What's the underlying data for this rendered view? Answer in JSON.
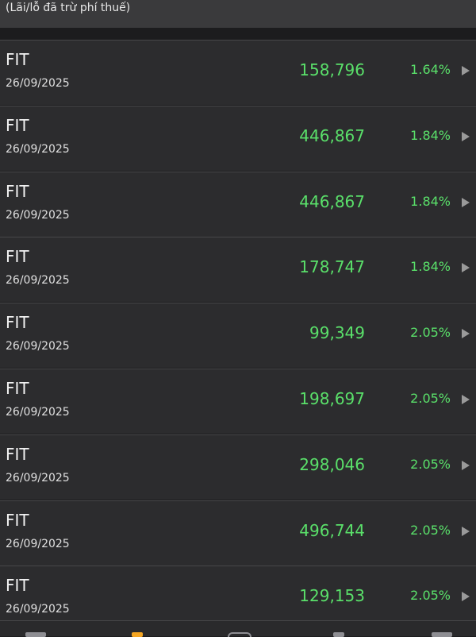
{
  "header": {
    "note": "(Lãi/lỗ đã trừ phí thuế)"
  },
  "list": {
    "rows": [
      {
        "symbol": "FIT",
        "date": "26/09/2025",
        "amount": "158,796",
        "percent": "1.64%"
      },
      {
        "symbol": "FIT",
        "date": "26/09/2025",
        "amount": "446,867",
        "percent": "1.84%"
      },
      {
        "symbol": "FIT",
        "date": "26/09/2025",
        "amount": "446,867",
        "percent": "1.84%"
      },
      {
        "symbol": "FIT",
        "date": "26/09/2025",
        "amount": "178,747",
        "percent": "1.84%"
      },
      {
        "symbol": "FIT",
        "date": "26/09/2025",
        "amount": "99,349",
        "percent": "2.05%"
      },
      {
        "symbol": "FIT",
        "date": "26/09/2025",
        "amount": "198,697",
        "percent": "2.05%"
      },
      {
        "symbol": "FIT",
        "date": "26/09/2025",
        "amount": "298,046",
        "percent": "2.05%"
      },
      {
        "symbol": "FIT",
        "date": "26/09/2025",
        "amount": "496,744",
        "percent": "2.05%"
      },
      {
        "symbol": "FIT",
        "date": "26/09/2025",
        "amount": "129,153",
        "percent": "2.05%"
      }
    ]
  }
}
